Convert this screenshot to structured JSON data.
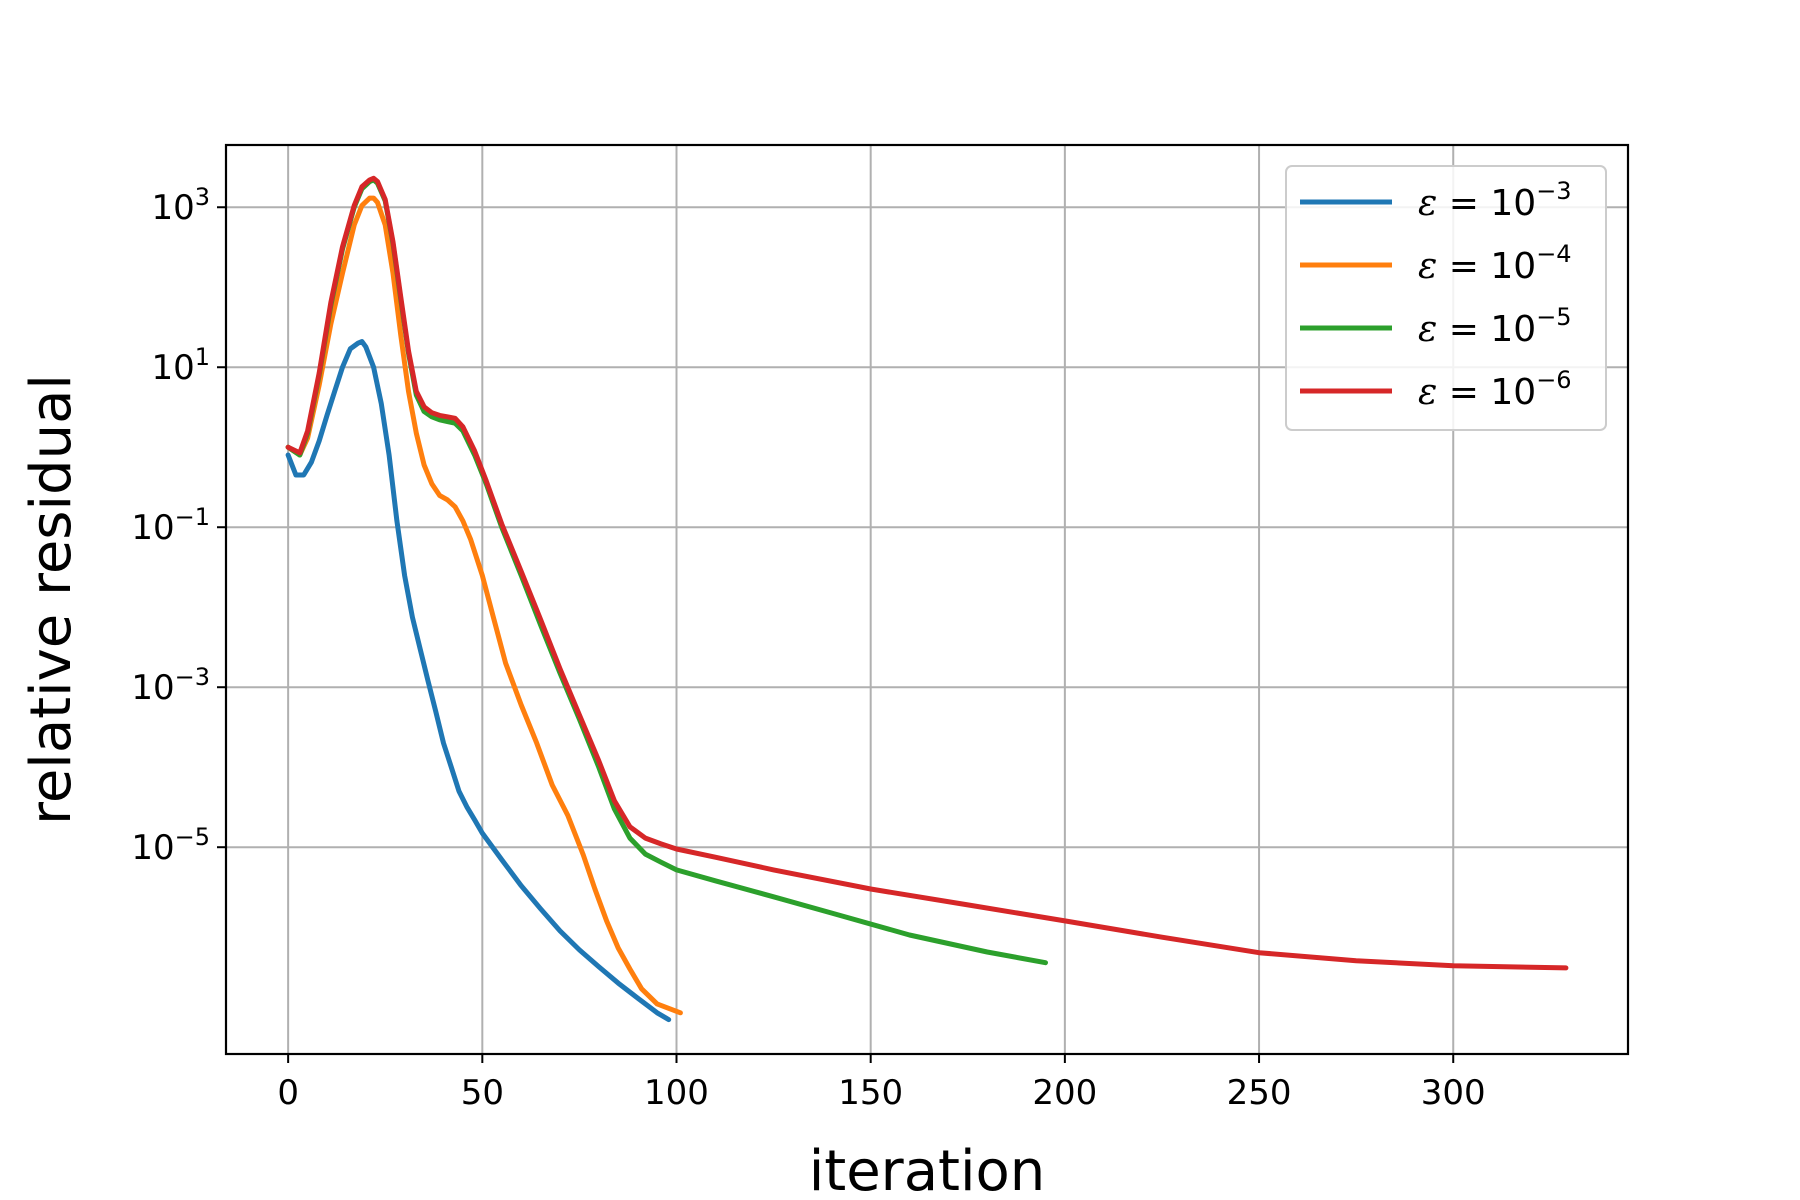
{
  "chart_data": {
    "type": "line",
    "xlabel": "iteration",
    "ylabel": "relative residual",
    "xlim": [
      -16,
      345
    ],
    "ylim": [
      2.6e-08,
      6000
    ],
    "yscale": "log",
    "grid": true,
    "legend_position": "top-right",
    "x_ticks": [
      0,
      50,
      100,
      150,
      200,
      250,
      300
    ],
    "x_tick_labels": [
      "0",
      "50",
      "100",
      "150",
      "200",
      "250",
      "300"
    ],
    "y_ticks": [
      1000.0,
      10.0,
      0.1,
      0.001,
      1e-05
    ],
    "y_tick_labels": [
      {
        "base": "10",
        "exp": "3"
      },
      {
        "base": "10",
        "exp": "1"
      },
      {
        "base": "10",
        "exp": "−1"
      },
      {
        "base": "10",
        "exp": "−3"
      },
      {
        "base": "10",
        "exp": "−5"
      }
    ],
    "series": [
      {
        "name": "ε = 10⁻³",
        "label_symbol": "ε",
        "label_eq": " = 10",
        "label_exp": "−3",
        "color": "#1f77b4",
        "x": [
          0,
          2,
          4,
          6,
          8,
          10,
          12,
          14,
          16,
          18,
          19,
          20,
          22,
          24,
          26,
          28,
          30,
          32,
          34,
          36,
          38,
          40,
          42,
          44,
          46,
          48,
          50,
          55,
          60,
          65,
          70,
          75,
          80,
          85,
          90,
          95,
          98
        ],
        "y": [
          0.8,
          0.45,
          0.45,
          0.65,
          1.2,
          2.5,
          5,
          10,
          17,
          20,
          21,
          18,
          10,
          3.5,
          0.8,
          0.12,
          0.025,
          0.0075,
          0.003,
          0.0012,
          0.0005,
          0.0002,
          0.0001,
          5e-05,
          3.2e-05,
          2.2e-05,
          1.5e-05,
          7e-06,
          3.3e-06,
          1.7e-06,
          9e-07,
          5.2e-07,
          3.2e-07,
          2e-07,
          1.3e-07,
          8.5e-08,
          7e-08
        ]
      },
      {
        "name": "ε = 10⁻⁴",
        "label_symbol": "ε",
        "label_eq": " = 10",
        "label_exp": "−4",
        "color": "#ff7f0e",
        "x": [
          0,
          3,
          5,
          8,
          11,
          14,
          17,
          19,
          21,
          22,
          23,
          25,
          27,
          29,
          31,
          33,
          35,
          37,
          39,
          41,
          43,
          45,
          47,
          50,
          53,
          56,
          60,
          64,
          68,
          72,
          76,
          79,
          82,
          85,
          88,
          91,
          95,
          101
        ],
        "y": [
          1,
          0.8,
          1.3,
          6,
          35,
          150,
          600,
          1050,
          1300,
          1300,
          1150,
          600,
          150,
          25,
          5,
          1.5,
          0.6,
          0.35,
          0.25,
          0.22,
          0.18,
          0.12,
          0.07,
          0.025,
          0.007,
          0.002,
          0.0006,
          0.0002,
          6e-05,
          2.5e-05,
          8e-06,
          3e-06,
          1.2e-06,
          5.5e-07,
          3e-07,
          1.7e-07,
          1.1e-07,
          8.5e-08
        ]
      },
      {
        "name": "ε = 10⁻⁵",
        "label_symbol": "ε",
        "label_eq": " = 10",
        "label_exp": "−5",
        "color": "#2ca02c",
        "x": [
          0,
          3,
          5,
          8,
          11,
          14,
          17,
          19,
          21,
          22,
          23,
          25,
          27,
          29,
          31,
          33,
          35,
          37,
          39,
          41,
          43,
          45,
          48,
          51,
          55,
          60,
          65,
          70,
          75,
          80,
          84,
          88,
          92,
          96,
          100,
          110,
          125,
          140,
          160,
          180,
          195
        ],
        "y": [
          1,
          0.8,
          1.5,
          8,
          60,
          300,
          1000,
          1700,
          2100,
          2200,
          2000,
          1200,
          350,
          70,
          15,
          4.5,
          2.8,
          2.4,
          2.2,
          2.1,
          2,
          1.6,
          0.8,
          0.35,
          0.1,
          0.025,
          0.006,
          0.0015,
          0.0004,
          0.0001,
          3e-05,
          1.3e-05,
          8.2e-06,
          6.5e-06,
          5.2e-06,
          3.8e-06,
          2.4e-06,
          1.5e-06,
          8e-07,
          4.9e-07,
          3.6e-07
        ]
      },
      {
        "name": "ε = 10⁻⁶",
        "label_symbol": "ε",
        "label_eq": " = 10",
        "label_exp": "−6",
        "color": "#d62728",
        "x": [
          0,
          3,
          5,
          8,
          11,
          14,
          17,
          19,
          21,
          22,
          23,
          25,
          27,
          29,
          31,
          33,
          35,
          37,
          39,
          41,
          43,
          45,
          48,
          51,
          55,
          60,
          65,
          70,
          75,
          80,
          84,
          88,
          92,
          96,
          100,
          110,
          125,
          150,
          175,
          200,
          225,
          250,
          275,
          300,
          329
        ],
        "y": [
          1,
          0.85,
          1.6,
          8.5,
          65,
          320,
          1050,
          1800,
          2200,
          2300,
          2100,
          1250,
          370,
          75,
          16,
          5,
          3.2,
          2.7,
          2.5,
          2.4,
          2.3,
          1.8,
          0.9,
          0.38,
          0.11,
          0.028,
          0.007,
          0.0017,
          0.00045,
          0.00012,
          3.8e-05,
          1.8e-05,
          1.3e-05,
          1.1e-05,
          9.5e-06,
          7.5e-06,
          5.2e-06,
          3e-06,
          1.9e-06,
          1.2e-06,
          7.5e-07,
          4.8e-07,
          3.8e-07,
          3.3e-07,
          3.1e-07
        ]
      }
    ]
  }
}
